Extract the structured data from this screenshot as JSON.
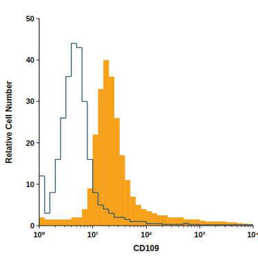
{
  "chart_data": {
    "type": "histogram",
    "log": "x",
    "x_label": "CD109",
    "y_label": "Relative Cell Number",
    "bins": [
      1,
      1.26,
      1.58,
      2,
      2.51,
      3.16,
      3.98,
      5.01,
      6.31,
      7.94,
      10,
      12.6,
      15.8,
      20,
      25.1,
      31.6,
      39.8,
      50.1,
      63.1,
      79.4,
      100,
      126,
      158,
      200,
      251,
      316,
      398,
      501,
      631,
      794,
      1000,
      1259,
      1585,
      1995,
      2512,
      3162,
      3981,
      5012,
      6310,
      7943,
      10000
    ],
    "series": [
      {
        "color": "#f7a11a",
        "type": "bar",
        "values": [
          2,
          1.5,
          1.5,
          1.5,
          1.5,
          1.5,
          2,
          2,
          4,
          9,
          22,
          33,
          40,
          36,
          26,
          17,
          11,
          7,
          5,
          4,
          3.5,
          3,
          2.5,
          2.5,
          2,
          2,
          2,
          1.5,
          1.5,
          1.5,
          1.2,
          1,
          1,
          1,
          1,
          0.8,
          0.8,
          0.6,
          0.5,
          0.4
        ]
      },
      {
        "color": "#2b5876",
        "type": "step",
        "values": [
          12,
          3,
          8,
          16,
          26,
          36,
          44,
          43,
          30,
          16,
          8,
          5,
          4,
          3,
          2,
          2,
          1.5,
          1,
          1,
          1,
          0.5,
          0.5,
          0.5,
          0.3,
          0.3,
          0.3,
          0.3,
          0.5,
          0.3,
          0.3,
          0.2,
          0.2,
          0.2,
          0.2,
          0.2,
          0.2,
          0.2,
          0.2,
          0.2,
          0.2
        ]
      }
    ],
    "xlim": [
      1,
      10000
    ],
    "xticks": [
      {
        "value": 1,
        "label": "10⁰"
      },
      {
        "value": 10,
        "label": "10¹"
      },
      {
        "value": 100,
        "label": "10²"
      },
      {
        "value": 1000,
        "label": "10³"
      },
      {
        "value": 10000,
        "label": "10⁴"
      }
    ],
    "ylim": [
      0,
      50
    ],
    "yticks": [
      0,
      10,
      20,
      30,
      40,
      50
    ],
    "grid": false
  }
}
